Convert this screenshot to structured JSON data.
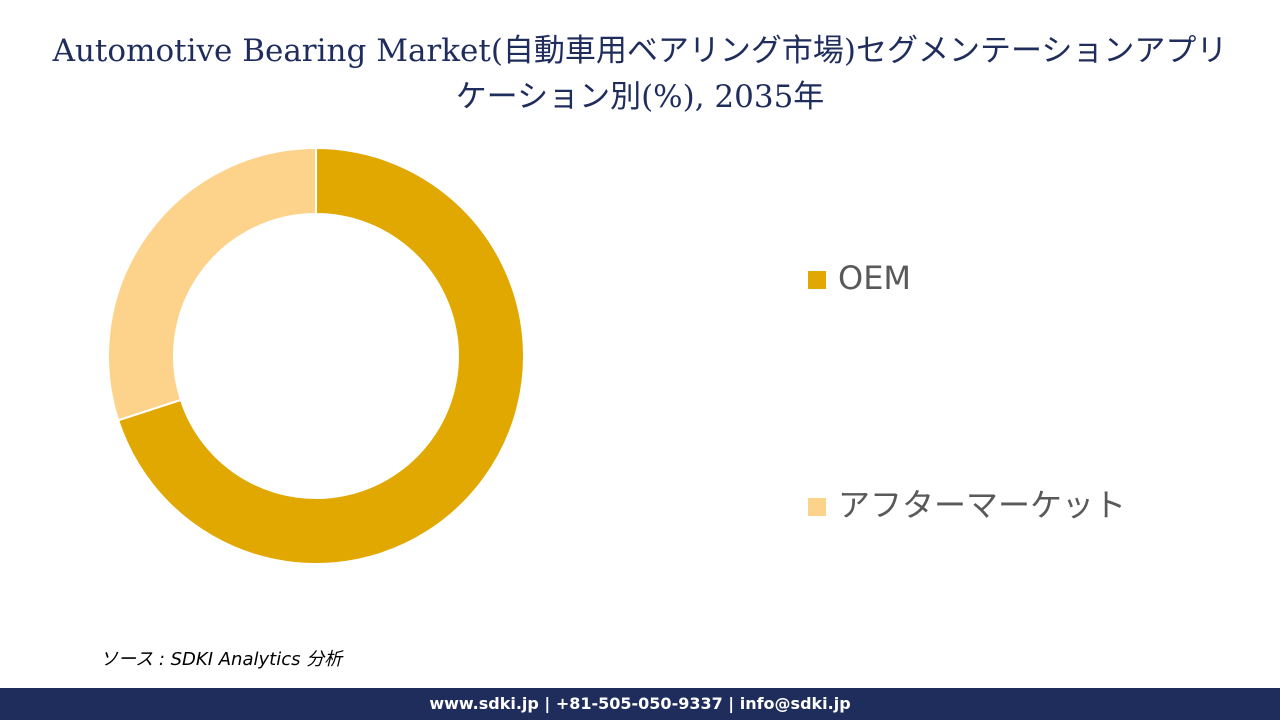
{
  "chart_data": {
    "type": "pie",
    "title": "Automotive Bearing Market(自動車用ベアリング市場)セグメンテーションアプリケーション別(%), 2035年",
    "categories": [
      "OEM",
      "アフターマーケット"
    ],
    "values": [
      70,
      30
    ],
    "colors": [
      "#e0a800",
      "#fdd28a"
    ],
    "source": "ソース : SDKI Analytics 分析"
  },
  "footer": "www.sdki.jp | +81-505-050-9337 | info@sdki.jp"
}
